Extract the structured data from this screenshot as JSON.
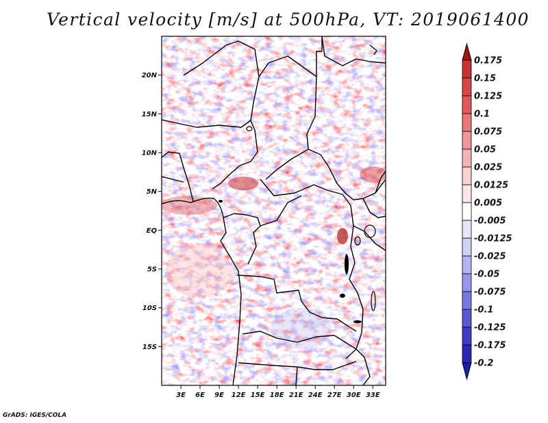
{
  "title": "Vertical velocity [m/s] at 500hPa, VT: 2019061400",
  "credit": "GrADS: IGES/COLA",
  "map": {
    "lat_range": [
      -20,
      25
    ],
    "lon_range": [
      0,
      35
    ],
    "lat_ticks": [
      {
        "value": 20,
        "label": "20N"
      },
      {
        "value": 15,
        "label": "15N"
      },
      {
        "value": 10,
        "label": "10N"
      },
      {
        "value": 5,
        "label": "5N"
      },
      {
        "value": 0,
        "label": "EQ"
      },
      {
        "value": -5,
        "label": "5S"
      },
      {
        "value": -10,
        "label": "10S"
      },
      {
        "value": -15,
        "label": "15S"
      }
    ],
    "lon_ticks": [
      {
        "value": 3,
        "label": "3E"
      },
      {
        "value": 6,
        "label": "6E"
      },
      {
        "value": 9,
        "label": "9E"
      },
      {
        "value": 12,
        "label": "12E"
      },
      {
        "value": 15,
        "label": "15E"
      },
      {
        "value": 18,
        "label": "18E"
      },
      {
        "value": 21,
        "label": "21E"
      },
      {
        "value": 24,
        "label": "24E"
      },
      {
        "value": 27,
        "label": "27E"
      },
      {
        "value": 30,
        "label": "30E"
      },
      {
        "value": 33,
        "label": "33E"
      }
    ]
  },
  "colorbar": {
    "levels": [
      {
        "label": "0.175",
        "color": "#b41e1e"
      },
      {
        "label": "0.15",
        "color": "#c83232"
      },
      {
        "label": "0.125",
        "color": "#d74646"
      },
      {
        "label": "0.1",
        "color": "#e15a5a"
      },
      {
        "label": "0.075",
        "color": "#eb7878"
      },
      {
        "label": "0.05",
        "color": "#f09696"
      },
      {
        "label": "0.025",
        "color": "#f5b4b4"
      },
      {
        "label": "0.0125",
        "color": "#fad2d2"
      },
      {
        "label": "0.005",
        "color": "#fde6e6"
      },
      {
        "label": "-0.005",
        "color": "#ffffff"
      },
      {
        "label": "-0.0125",
        "color": "#e6e6fa"
      },
      {
        "label": "-0.025",
        "color": "#d2d2f5"
      },
      {
        "label": "-0.05",
        "color": "#b4b4f0"
      },
      {
        "label": "-0.075",
        "color": "#9696eb"
      },
      {
        "label": "-0.1",
        "color": "#7878e1"
      },
      {
        "label": "-0.125",
        "color": "#5a5ad7"
      },
      {
        "label": "-0.175",
        "color": "#3c3cc8"
      },
      {
        "label": "-0.2",
        "color": "#2828b4"
      }
    ],
    "top_arrow_color": "#a01414",
    "bottom_arrow_color": "#1e1ea0"
  }
}
